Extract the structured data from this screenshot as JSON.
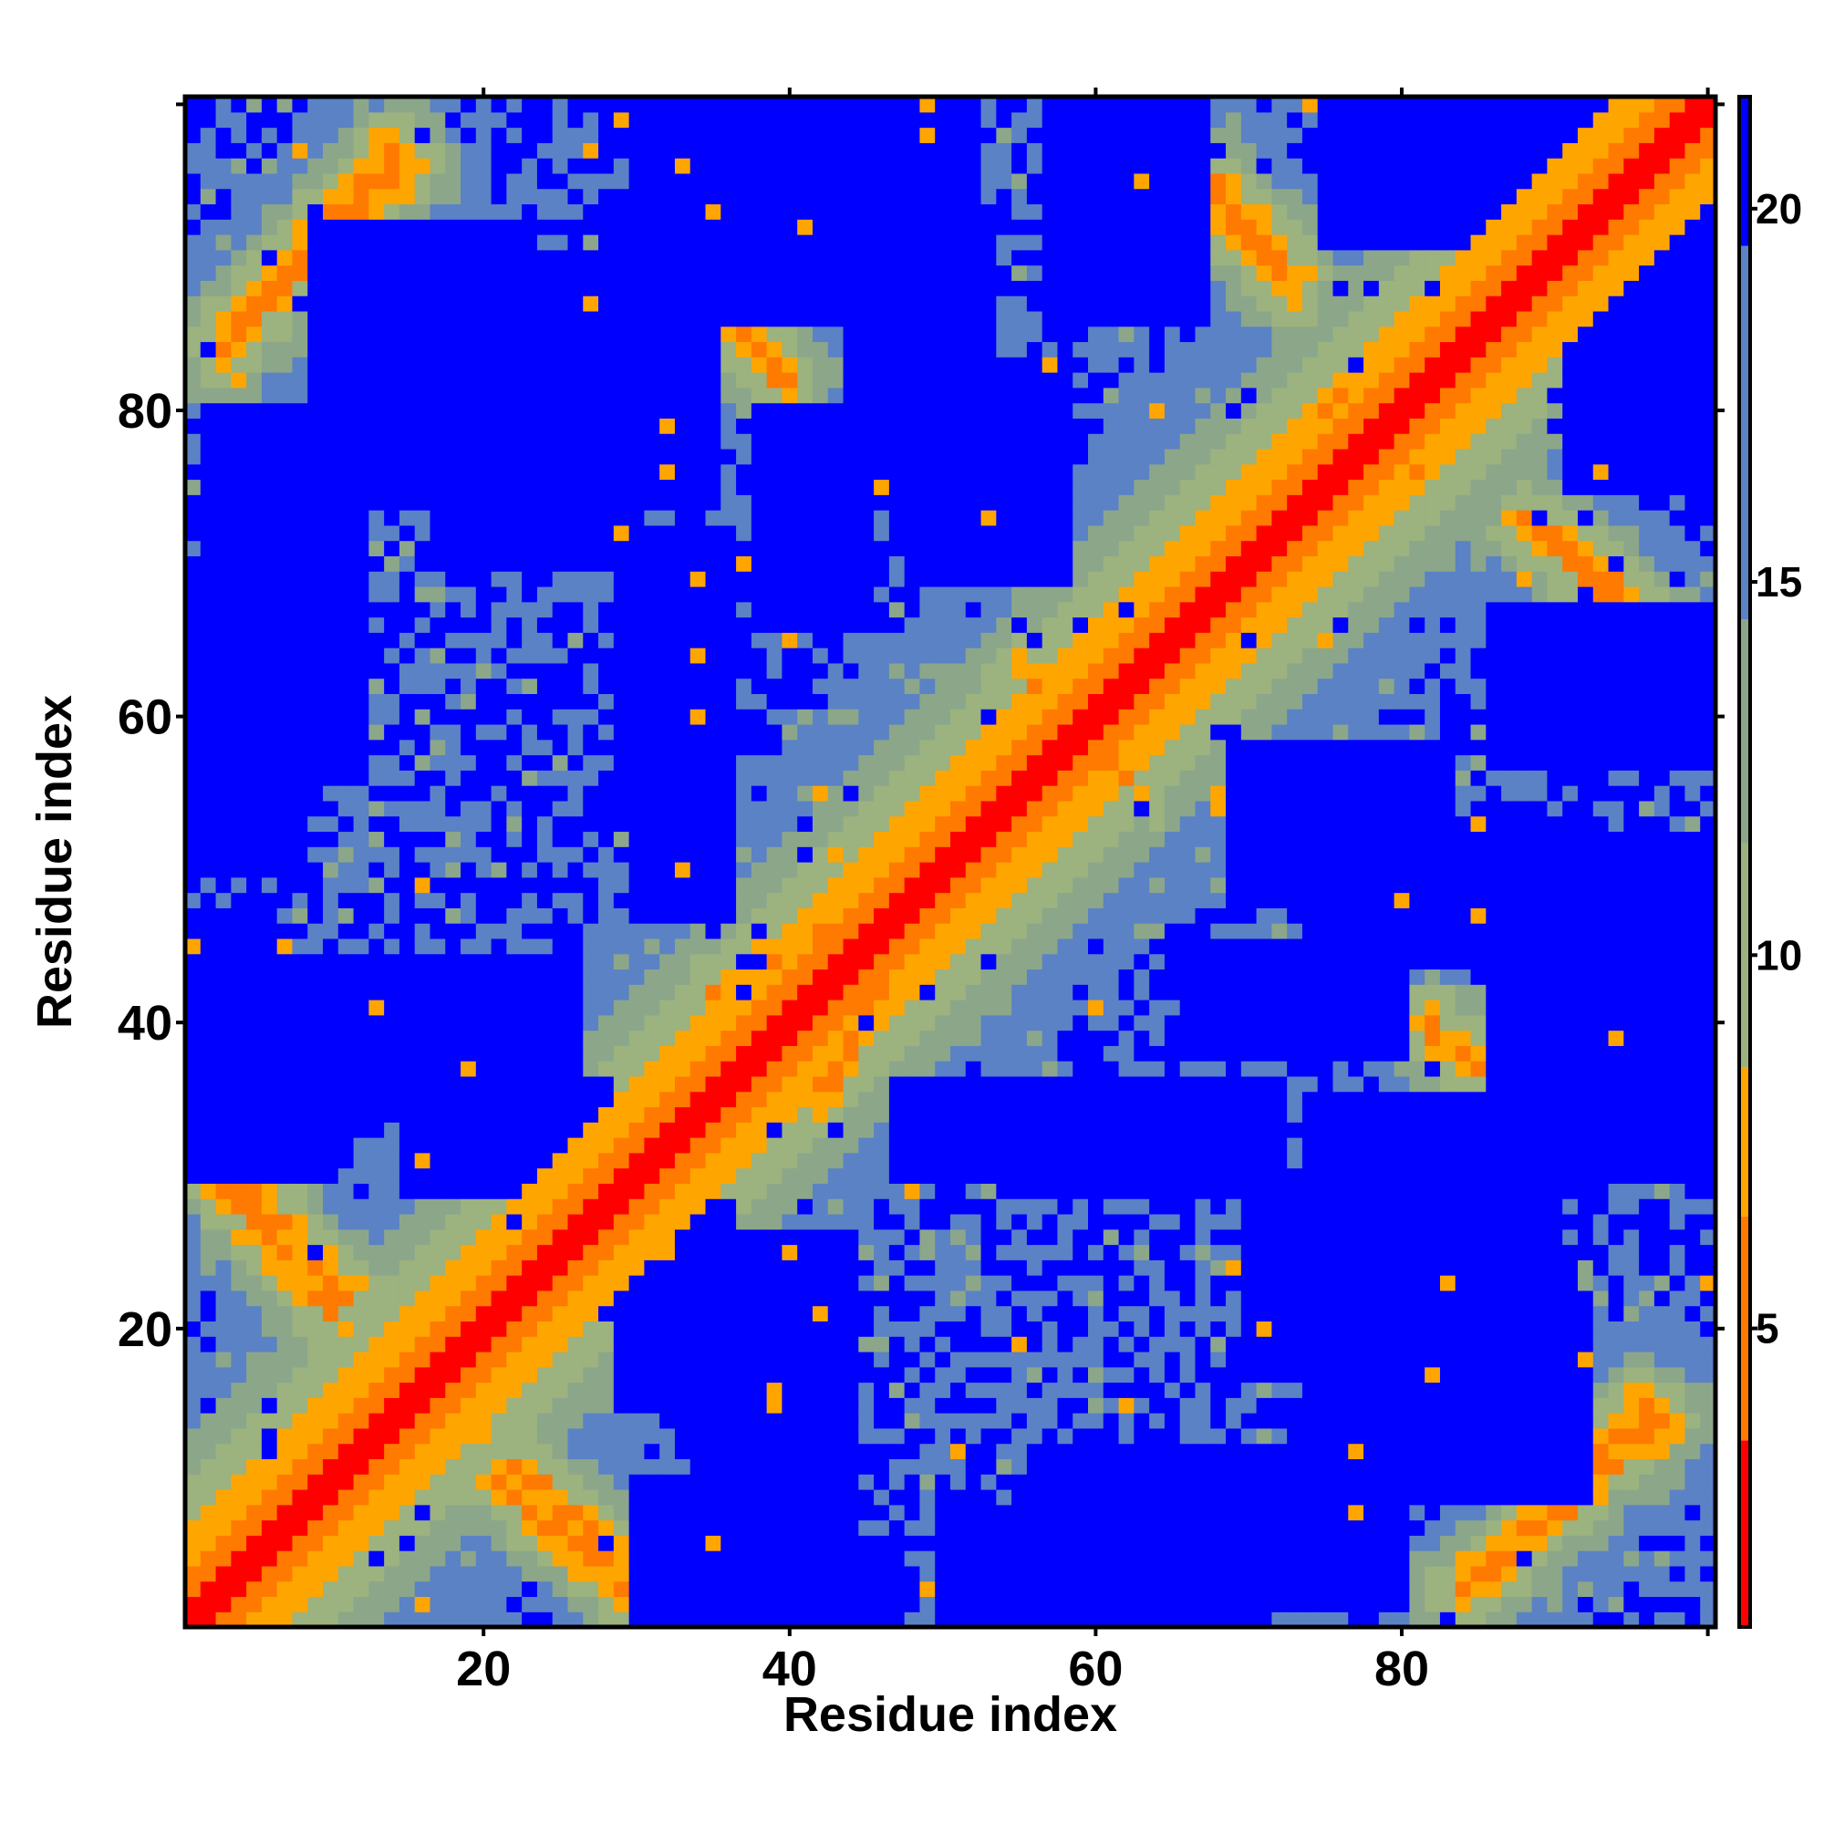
{
  "chart_data": {
    "type": "heatmap",
    "title": "",
    "xlabel": "Residue index",
    "ylabel": "Residue index",
    "n_residues": 100,
    "xlim": [
      1,
      100
    ],
    "ylim": [
      1,
      100
    ],
    "x_ticks": [
      20,
      40,
      60,
      80
    ],
    "y_ticks": [
      20,
      40,
      60,
      80
    ],
    "colorbar": {
      "label": "",
      "ticks": [
        5,
        10,
        15,
        20
      ],
      "range": [
        1,
        21.5
      ],
      "scale": [
        {
          "max": 3.5,
          "color": "#ff0000"
        },
        {
          "max": 6.5,
          "color": "#ff7a00"
        },
        {
          "max": 8.5,
          "color": "#ffa500"
        },
        {
          "max": 11.5,
          "color": "#9cb27f"
        },
        {
          "max": 14.5,
          "color": "#8ca68a"
        },
        {
          "max": 19.5,
          "color": "#5b82c4"
        },
        {
          "max": 1000,
          "color": "#0000ff"
        }
      ]
    },
    "contact_segments": [
      {
        "i1": 3,
        "j1": 84,
        "i2": 14,
        "j2": 97,
        "min_dist": 5.5
      },
      {
        "i1": 2,
        "j1": 32,
        "i2": 11,
        "j2": 22,
        "min_dist": 5.5
      },
      {
        "i1": 21,
        "j1": 10,
        "i2": 32,
        "j2": 1,
        "min_dist": 5.5
      },
      {
        "i1": 35,
        "j1": 87,
        "i2": 39,
        "j2": 82,
        "min_dist": 6.5
      },
      {
        "i1": 66,
        "j1": 96,
        "i2": 72,
        "j2": 90,
        "min_dist": 5.5
      },
      {
        "i1": 88,
        "j1": 73,
        "i2": 96,
        "j2": 66,
        "min_dist": 5.5
      },
      {
        "i1": 82,
        "j1": 40,
        "i2": 87,
        "j2": 35,
        "min_dist": 6.0
      },
      {
        "i1": 86,
        "j1": 4,
        "i2": 96,
        "j2": 15,
        "min_dist": 5.5
      },
      {
        "i1": 35,
        "j1": 42,
        "i2": 50,
        "j2": 50,
        "min_dist": 6.0
      },
      {
        "i1": 12,
        "j1": 14,
        "i2": 22,
        "j2": 22,
        "min_dist": 5.0
      },
      {
        "i1": 55,
        "j1": 63,
        "i2": 58,
        "j2": 60,
        "min_dist": 6.5
      },
      {
        "i1": 70,
        "j1": 70,
        "i2": 76,
        "j2": 74,
        "min_dist": 6.5
      },
      {
        "i1": 75,
        "j1": 80,
        "i2": 81,
        "j2": 76,
        "min_dist": 6.5
      }
    ],
    "empty_regions": [
      {
        "i": [
          9,
          22
        ],
        "j": [
          74,
          92
        ],
        "min_dist": 20
      },
      {
        "i": [
          29,
          35
        ],
        "j": [
          74,
          92
        ],
        "min_dist": 20
      },
      {
        "i": [
          44,
          53
        ],
        "j": [
          74,
          92
        ],
        "min_dist": 20
      },
      {
        "i": [
          57,
          67
        ],
        "j": [
          86,
          100
        ],
        "min_dist": 20
      },
      {
        "i": [
          10,
          26
        ],
        "j": [
          34,
          44
        ],
        "min_dist": 20
      },
      {
        "i": [
          29,
          36
        ],
        "j": [
          55,
          72
        ],
        "min_dist": 20
      },
      {
        "i": [
          1,
          8
        ],
        "j": [
          50,
          70
        ],
        "min_dist": 20
      },
      {
        "i": [
          1,
          6
        ],
        "j": [
          37,
          47
        ],
        "min_dist": 20
      },
      {
        "i": [
          30,
          38
        ],
        "j": [
          1,
          10
        ],
        "min_dist": 20
      },
      {
        "i": [
          29,
          36
        ],
        "j": [
          15,
          28
        ],
        "min_dist": 20
      },
      {
        "i": [
          47,
          68
        ],
        "j": [
          30,
          36
        ],
        "min_dist": 20
      },
      {
        "i": [
          56,
          80
        ],
        "j": [
          2,
          12
        ],
        "min_dist": 20
      },
      {
        "i": [
          70,
          90
        ],
        "j": [
          17,
          30
        ],
        "min_dist": 20
      },
      {
        "i": [
          69,
          83
        ],
        "j": [
          48,
          58
        ],
        "min_dist": 20
      },
      {
        "i": [
          86,
          100
        ],
        "j": [
          30,
          52
        ],
        "min_dist": 20
      },
      {
        "i": [
          91,
          100
        ],
        "j": [
          75,
          100
        ],
        "min_dist": 20
      },
      {
        "i": [
          38,
          45
        ],
        "j": [
          66,
          80
        ],
        "min_dist": 20
      },
      {
        "i": [
          37,
          44
        ],
        "j": [
          5,
          16
        ],
        "min_dist": 20
      }
    ]
  }
}
